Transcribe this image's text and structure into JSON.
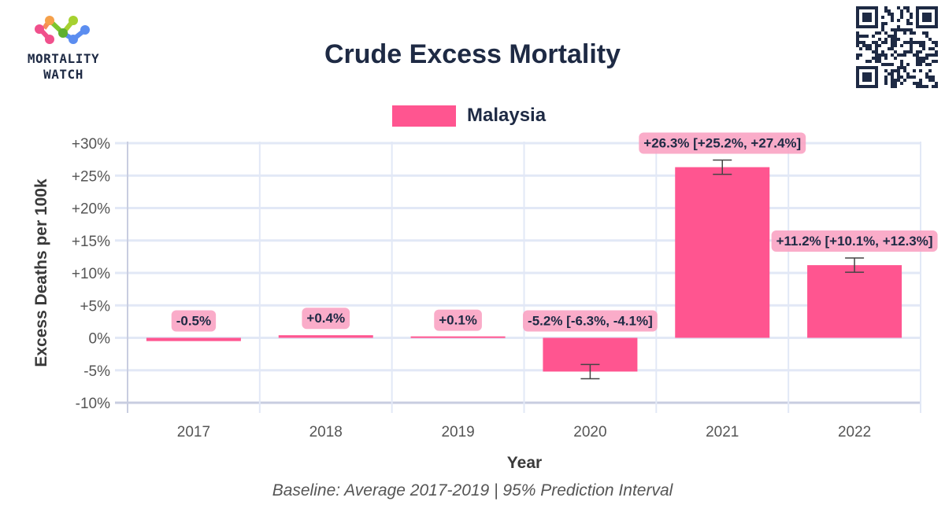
{
  "header": {
    "logo_line1": "MORTALITY",
    "logo_line2": "WATCH",
    "title": "Crude Excess Mortality",
    "qr_icon": "qr-code-icon"
  },
  "legend": {
    "label": "Malaysia",
    "color": "#ff5590"
  },
  "caption": "Baseline: Average 2017-2019 | 95% Prediction Interval",
  "colors": {
    "bar": "#ff5590",
    "label_bg": "#f9a3c3",
    "grid": "#e2e8f6",
    "axis": "#c8cde0",
    "errorbar": "#444444",
    "text_dark": "#1e2a44"
  },
  "chart_data": {
    "type": "bar",
    "title": "Crude Excess Mortality",
    "xlabel": "Year",
    "ylabel": "Excess Deaths per 100k",
    "categories": [
      "2017",
      "2018",
      "2019",
      "2020",
      "2021",
      "2022"
    ],
    "series": [
      {
        "name": "Malaysia",
        "values": [
          -0.5,
          0.4,
          0.1,
          -5.2,
          26.3,
          11.2
        ],
        "lower": [
          null,
          null,
          null,
          -6.3,
          25.2,
          10.1
        ],
        "upper": [
          null,
          null,
          null,
          -4.1,
          27.4,
          12.3
        ],
        "labels": [
          "-0.5%",
          "+0.4%",
          "+0.1%",
          "-5.2% [-6.3%, -4.1%]",
          "+26.3% [+25.2%, +27.4%]",
          "+11.2% [+10.1%, +12.3%]"
        ]
      }
    ],
    "ylim": [
      -10,
      30
    ],
    "yticks": [
      30,
      25,
      20,
      15,
      10,
      5,
      0,
      -5,
      -10
    ],
    "ytick_labels": [
      "+30%",
      "+25%",
      "+20%",
      "+15%",
      "+10%",
      "+5%",
      "0%",
      "-5%",
      "-10%"
    ],
    "grid": true,
    "legend_position": "top-center"
  }
}
